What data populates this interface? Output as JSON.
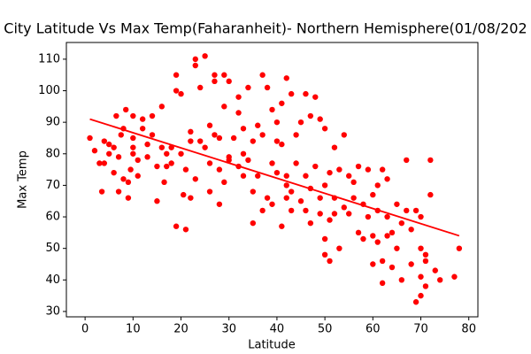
{
  "chart_data": {
    "type": "scatter",
    "title": "City Latitude Vs Max Temp(Faharanheit)- Northern Hemisphere(01/08/202",
    "x_label": "Latitude",
    "y_label": "Max Temp",
    "xlim": [
      -3.9,
      81.9
    ],
    "ylim": [
      28.3,
      115.3
    ],
    "xticks": [
      0,
      10,
      20,
      30,
      40,
      50,
      60,
      70,
      80
    ],
    "yticks": [
      30,
      40,
      50,
      60,
      70,
      80,
      90,
      100,
      110
    ],
    "series": [
      {
        "color": "#ff0000",
        "x": [
          1,
          2,
          3,
          3.5,
          4,
          4,
          5,
          5,
          6,
          6,
          6.5,
          7,
          7,
          7.5,
          8,
          8,
          8.5,
          9,
          9,
          9.5,
          10,
          10,
          10,
          10,
          11,
          11,
          12,
          12,
          13,
          13,
          14,
          14,
          15,
          15,
          16,
          16,
          16.5,
          17,
          17,
          18,
          18,
          19,
          19,
          19,
          20,
          20,
          20.5,
          21,
          21,
          22,
          22,
          22,
          23,
          23,
          23,
          24,
          24,
          25,
          25,
          26,
          26,
          26,
          27,
          27,
          27,
          28,
          28,
          28,
          29,
          29,
          29,
          30,
          30,
          30,
          31,
          32,
          32,
          32,
          33,
          33,
          33,
          34,
          34,
          35,
          35,
          35,
          36,
          36,
          37,
          37,
          37,
          38,
          38,
          39,
          39,
          39,
          40,
          40,
          40,
          41,
          41,
          41,
          42,
          42,
          42,
          42,
          43,
          43,
          43,
          44,
          44,
          45,
          45,
          46,
          46,
          46,
          47,
          47,
          47,
          48,
          48,
          49,
          49,
          49,
          50,
          50,
          50,
          50,
          51,
          51,
          51,
          52,
          52,
          52,
          53,
          53,
          54,
          54,
          55,
          55,
          56,
          56,
          57,
          57,
          58,
          58,
          59,
          59,
          60,
          60,
          60,
          61,
          61,
          61,
          62,
          62,
          62,
          63,
          63,
          63,
          64,
          64,
          65,
          65,
          66,
          66,
          67,
          67,
          68,
          68,
          69,
          69,
          70,
          70,
          70,
          70,
          71,
          71,
          71,
          72,
          72,
          73,
          74,
          77,
          78
        ],
        "y": [
          85,
          81,
          77,
          68,
          84,
          77,
          80,
          83,
          82,
          74,
          92,
          68,
          79,
          86,
          88,
          72,
          94,
          71,
          66,
          75,
          92,
          85,
          80,
          82,
          78,
          73,
          88,
          91,
          83,
          79,
          92,
          86,
          65,
          76,
          82,
          95,
          71,
          76,
          80,
          82,
          77,
          105,
          100,
          57,
          99,
          80,
          67,
          56,
          75,
          84,
          66,
          87,
          110,
          108,
          72,
          84,
          101,
          111,
          82,
          89,
          77,
          68,
          103,
          105,
          86,
          64,
          75,
          85,
          105,
          71,
          95,
          103,
          79,
          78,
          85,
          98,
          93,
          76,
          88,
          80,
          73,
          101,
          78,
          58,
          68,
          84,
          89,
          73,
          105,
          62,
          86,
          101,
          66,
          94,
          77,
          64,
          90,
          74,
          84,
          57,
          96,
          83,
          104,
          70,
          66,
          73,
          99,
          68,
          62,
          77,
          86,
          65,
          90,
          73,
          62,
          99,
          92,
          69,
          58,
          98,
          76,
          66,
          91,
          61,
          48,
          88,
          53,
          70,
          46,
          59,
          74,
          61,
          82,
          66,
          50,
          75,
          86,
          63,
          73,
          61,
          66,
          71,
          76,
          55,
          64,
          53,
          60,
          75,
          45,
          67,
          54,
          52,
          62,
          70,
          39,
          46,
          75,
          54,
          60,
          72,
          44,
          55,
          64,
          50,
          40,
          58,
          78,
          62,
          56,
          45,
          33,
          62,
          35,
          50,
          60,
          41,
          46,
          38,
          48,
          67,
          78,
          43,
          40,
          41,
          50
        ]
      },
      {
        "type": "line",
        "color": "#ff0000",
        "x": [
          1,
          78
        ],
        "y": [
          91,
          54
        ]
      }
    ]
  }
}
